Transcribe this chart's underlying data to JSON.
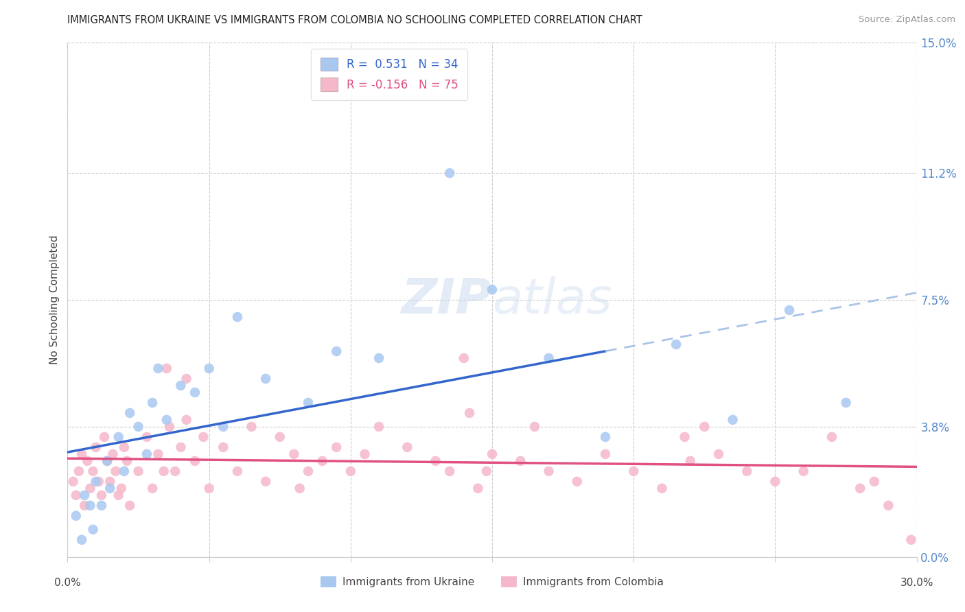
{
  "title": "IMMIGRANTS FROM UKRAINE VS IMMIGRANTS FROM COLOMBIA NO SCHOOLING COMPLETED CORRELATION CHART",
  "source": "Source: ZipAtlas.com",
  "ylabel": "No Schooling Completed",
  "ytick_vals": [
    0.0,
    3.8,
    7.5,
    11.2,
    15.0
  ],
  "xlim": [
    0.0,
    30.0
  ],
  "ylim": [
    0.0,
    15.0
  ],
  "ukraine_color": "#a8c8f0",
  "colombia_color": "#f5b8cb",
  "ukraine_line_color": "#3366cc",
  "colombia_line_color": "#e05080",
  "ukraine_dash_color": "#aac4e8",
  "legend_ukraine_label": "R =  0.531   N = 34",
  "legend_colombia_label": "R = -0.156   N = 75",
  "ukraine_scatter_x": [
    0.3,
    0.5,
    0.6,
    0.8,
    0.9,
    1.0,
    1.2,
    1.4,
    1.5,
    1.8,
    2.0,
    2.2,
    2.5,
    2.8,
    3.0,
    3.2,
    3.5,
    4.0,
    4.5,
    5.0,
    5.5,
    6.0,
    7.0,
    8.5,
    9.5,
    11.0,
    13.5,
    15.0,
    17.0,
    19.0,
    21.5,
    23.5,
    25.5,
    27.5
  ],
  "ukraine_scatter_y": [
    1.2,
    0.5,
    1.8,
    1.5,
    0.8,
    2.2,
    1.5,
    2.8,
    2.0,
    3.5,
    2.5,
    4.2,
    3.8,
    3.0,
    4.5,
    5.5,
    4.0,
    5.0,
    4.8,
    5.5,
    3.8,
    7.0,
    5.2,
    4.5,
    6.0,
    5.8,
    11.2,
    7.8,
    5.8,
    3.5,
    6.2,
    4.0,
    7.2,
    4.5
  ],
  "colombia_scatter_x": [
    0.2,
    0.3,
    0.4,
    0.5,
    0.6,
    0.7,
    0.8,
    0.9,
    1.0,
    1.1,
    1.2,
    1.3,
    1.4,
    1.5,
    1.6,
    1.7,
    1.8,
    1.9,
    2.0,
    2.1,
    2.2,
    2.5,
    2.8,
    3.0,
    3.2,
    3.4,
    3.6,
    3.8,
    4.0,
    4.2,
    4.5,
    4.8,
    5.0,
    5.5,
    6.0,
    6.5,
    7.0,
    7.5,
    8.0,
    8.5,
    9.0,
    9.5,
    10.0,
    10.5,
    11.0,
    12.0,
    13.0,
    13.5,
    14.0,
    14.5,
    15.0,
    16.0,
    17.0,
    18.0,
    19.0,
    20.0,
    21.0,
    22.0,
    23.0,
    24.0,
    25.0,
    26.0,
    27.0,
    28.0,
    28.5,
    29.0,
    29.8,
    14.2,
    16.5,
    21.8,
    3.5,
    4.2,
    8.2,
    14.8,
    22.5
  ],
  "colombia_scatter_y": [
    2.2,
    1.8,
    2.5,
    3.0,
    1.5,
    2.8,
    2.0,
    2.5,
    3.2,
    2.2,
    1.8,
    3.5,
    2.8,
    2.2,
    3.0,
    2.5,
    1.8,
    2.0,
    3.2,
    2.8,
    1.5,
    2.5,
    3.5,
    2.0,
    3.0,
    2.5,
    3.8,
    2.5,
    3.2,
    4.0,
    2.8,
    3.5,
    2.0,
    3.2,
    2.5,
    3.8,
    2.2,
    3.5,
    3.0,
    2.5,
    2.8,
    3.2,
    2.5,
    3.0,
    3.8,
    3.2,
    2.8,
    2.5,
    5.8,
    2.0,
    3.0,
    2.8,
    2.5,
    2.2,
    3.0,
    2.5,
    2.0,
    2.8,
    3.0,
    2.5,
    2.2,
    2.5,
    3.5,
    2.0,
    2.2,
    1.5,
    0.5,
    4.2,
    3.8,
    3.5,
    5.5,
    5.2,
    2.0,
    2.5,
    3.8
  ]
}
